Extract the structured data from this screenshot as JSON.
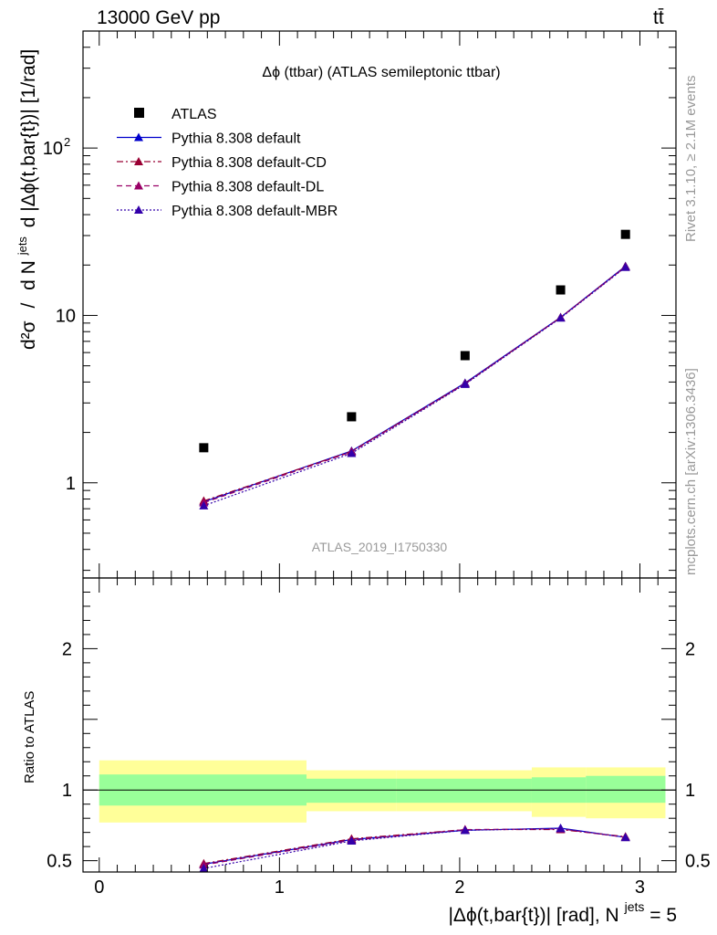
{
  "header": {
    "left": "13000 GeV pp",
    "right": "tt̄"
  },
  "side_labels": {
    "rivet": "Rivet 3.1.10, ≥ 2.1M events",
    "mcplots": "mcplots.cern.ch [arXiv:1306.3436]"
  },
  "watermark": "ATLAS_2019_I1750330",
  "chart_data": [
    {
      "type": "line",
      "title": "Δϕ (ttbar) (ATLAS semileptonic ttbar)",
      "ylabel_parts": {
        "d2sigma": "d²σ",
        "slash": "/",
        "dN": "d N",
        "jets_sup": "jets",
        "rest": "d |Δϕ(t,bar{t})| [1/rad]"
      },
      "y_scale": "log",
      "ylim": [
        0.27,
        500
      ],
      "y_ticks": [
        {
          "value": 1,
          "label": "1"
        },
        {
          "value": 10,
          "label": "10"
        },
        {
          "value": 100,
          "label": "10",
          "sup": "2"
        }
      ],
      "xlim": [
        -0.09,
        3.2
      ],
      "legend_position": "top-left",
      "bin_edges": [
        0,
        1.15,
        1.65,
        2.4,
        2.7,
        3.1416
      ],
      "x": [
        0.58,
        1.4,
        2.03,
        2.56,
        2.92
      ],
      "series": [
        {
          "name": "ATLAS",
          "marker": "square",
          "color": "#000000",
          "values": [
            1.62,
            2.48,
            5.75,
            14.2,
            30.5
          ]
        },
        {
          "name": "Pythia 8.308 default",
          "marker": "triangle",
          "line": "solid",
          "color": "#0000cc",
          "values": [
            0.77,
            1.55,
            3.95,
            9.75,
            19.7
          ]
        },
        {
          "name": "Pythia 8.308 default-CD",
          "marker": "triangle",
          "line": "dashdot",
          "color": "#990033",
          "values": [
            0.78,
            1.54,
            3.92,
            9.72,
            19.6
          ]
        },
        {
          "name": "Pythia 8.308 default-DL",
          "marker": "triangle",
          "line": "dashed",
          "color": "#990066",
          "values": [
            0.76,
            1.53,
            3.9,
            9.7,
            19.5
          ]
        },
        {
          "name": "Pythia 8.308 default-MBR",
          "marker": "triangle",
          "line": "dotted",
          "color": "#3300aa",
          "values": [
            0.73,
            1.5,
            3.88,
            9.65,
            19.4
          ]
        }
      ]
    },
    {
      "type": "line",
      "ylabel": "Ratio to ATLAS",
      "xlabel_parts": {
        "main": "|Δϕ(t,bar{t})| [rad], N",
        "sup": "jets",
        "tail": " = 5"
      },
      "ylim": [
        0.42,
        2.5
      ],
      "xlim": [
        -0.09,
        3.2
      ],
      "y_ticks": [
        {
          "value": 0.5,
          "label": "0.5"
        },
        {
          "value": 1,
          "label": "1"
        },
        {
          "value": 2,
          "label": "2"
        }
      ],
      "x_ticks": [
        {
          "value": 0,
          "label": "0"
        },
        {
          "value": 1,
          "label": "1"
        },
        {
          "value": 2,
          "label": "2"
        },
        {
          "value": 3,
          "label": "3"
        }
      ],
      "bands": {
        "stat": {
          "color": "#99ff99",
          "low": [
            0.89,
            0.91,
            0.91,
            0.91,
            0.91
          ],
          "high": [
            1.11,
            1.08,
            1.08,
            1.09,
            1.1
          ]
        },
        "total": {
          "color": "#ffff99",
          "low": [
            0.77,
            0.85,
            0.85,
            0.81,
            0.8
          ],
          "high": [
            1.21,
            1.14,
            1.14,
            1.16,
            1.16
          ]
        }
      },
      "x": [
        0.58,
        1.4,
        2.03,
        2.56,
        2.92
      ],
      "series": [
        {
          "name": "Pythia 8.308 default",
          "color": "#0000cc",
          "line": "solid",
          "values": [
            0.475,
            0.65,
            0.715,
            0.73,
            0.665
          ]
        },
        {
          "name": "Pythia 8.308 default-CD",
          "color": "#990033",
          "line": "dashdot",
          "values": [
            0.48,
            0.655,
            0.72,
            0.72,
            0.67
          ]
        },
        {
          "name": "Pythia 8.308 default-DL",
          "color": "#990066",
          "line": "dashed",
          "values": [
            0.47,
            0.645,
            0.72,
            0.725,
            0.665
          ]
        },
        {
          "name": "Pythia 8.308 default-MBR",
          "color": "#3300aa",
          "line": "dotted",
          "values": [
            0.445,
            0.64,
            0.715,
            0.728,
            0.665
          ]
        }
      ]
    }
  ]
}
